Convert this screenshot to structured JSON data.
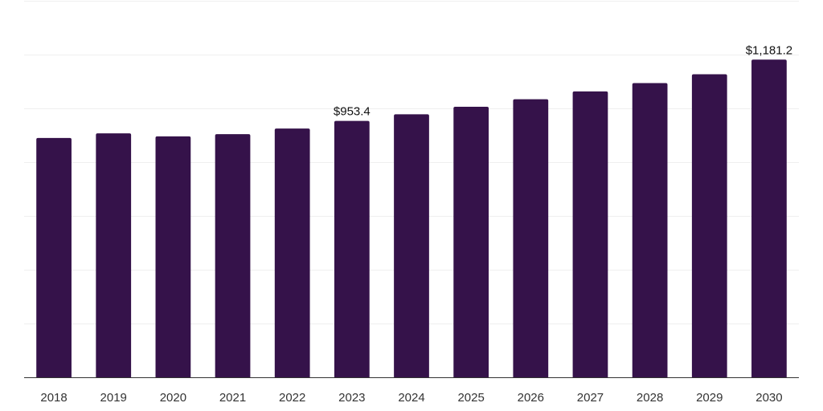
{
  "chart_data": {
    "type": "bar",
    "title": "",
    "xlabel": "",
    "ylabel": "",
    "categories": [
      "2018",
      "2019",
      "2020",
      "2021",
      "2022",
      "2023",
      "2024",
      "2025",
      "2026",
      "2027",
      "2028",
      "2029",
      "2030"
    ],
    "values": [
      890,
      907,
      896,
      904,
      925,
      953.4,
      978,
      1006,
      1034,
      1063,
      1094,
      1127,
      1181.2
    ],
    "data_labels": [
      {
        "index": 5,
        "text": "$953.4"
      },
      {
        "index": 12,
        "text": "$1,181.2"
      }
    ],
    "ylim": [
      0,
      1400
    ],
    "gridlines": [
      0,
      200,
      400,
      600,
      800,
      1000,
      1200,
      1400
    ],
    "grid": true,
    "legend": "none",
    "colors": {
      "bar": "#35124a",
      "grid": "#efefef",
      "axis": "#333333",
      "text": "#333333"
    }
  }
}
